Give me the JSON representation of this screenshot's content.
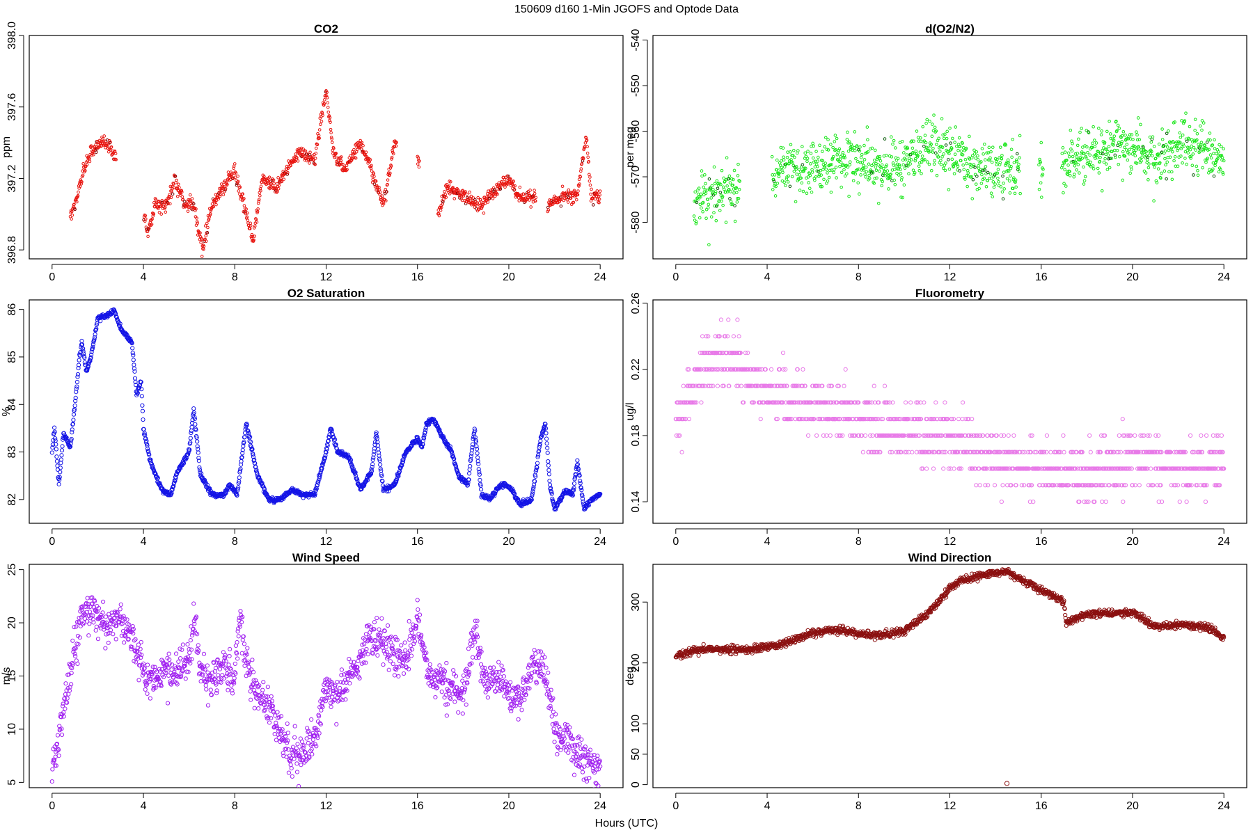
{
  "figure": {
    "title": "150609   d160   1-Min  JGOFS and Optode Data",
    "xlabel": "Hours (UTC)"
  },
  "chart_data": [
    {
      "type": "scatter",
      "title": "CO2",
      "ylabel": "ppm",
      "color": "#e8140f",
      "secondary_color": "#7a0000",
      "xlim": [
        -1,
        25
      ],
      "ylim": [
        396.75,
        398.0
      ],
      "xticks": [
        0,
        4,
        8,
        12,
        16,
        20,
        24
      ],
      "xtick_labels": [
        "0",
        "4",
        "8",
        "12",
        "16",
        "20",
        "24"
      ],
      "yticks": [
        396.8,
        397.2,
        397.6,
        398.0
      ],
      "ytick_labels": [
        "396.8",
        "397.2",
        "397.6",
        "398.0"
      ],
      "marker_size": 1.8,
      "noise": 0.04,
      "gaps": [
        [
          2.8,
          4.0
        ],
        [
          15.1,
          16.0
        ],
        [
          16.1,
          16.9
        ],
        [
          21.2,
          21.7
        ]
      ],
      "anchors": [
        [
          0.8,
          397.0
        ],
        [
          1.0,
          397.05
        ],
        [
          1.5,
          397.3
        ],
        [
          2.0,
          397.4
        ],
        [
          2.5,
          397.4
        ],
        [
          2.8,
          397.3
        ],
        [
          4.0,
          397.0
        ],
        [
          4.2,
          396.9
        ],
        [
          4.5,
          397.05
        ],
        [
          5.0,
          397.05
        ],
        [
          5.4,
          397.2
        ],
        [
          5.8,
          397.05
        ],
        [
          6.2,
          397.05
        ],
        [
          6.6,
          396.8
        ],
        [
          7.0,
          397.05
        ],
        [
          7.5,
          397.15
        ],
        [
          8.0,
          397.25
        ],
        [
          8.8,
          396.85
        ],
        [
          9.2,
          397.2
        ],
        [
          9.8,
          397.15
        ],
        [
          10.8,
          397.35
        ],
        [
          11.5,
          397.3
        ],
        [
          12.0,
          397.7
        ],
        [
          12.3,
          397.35
        ],
        [
          12.8,
          397.25
        ],
        [
          13.5,
          397.4
        ],
        [
          14.0,
          397.25
        ],
        [
          14.5,
          397.05
        ],
        [
          15.0,
          397.4
        ],
        [
          16.0,
          397.3
        ],
        [
          16.9,
          397.0
        ],
        [
          17.3,
          397.15
        ],
        [
          18.0,
          397.1
        ],
        [
          18.8,
          397.05
        ],
        [
          19.5,
          397.15
        ],
        [
          20.0,
          397.2
        ],
        [
          20.5,
          397.1
        ],
        [
          21.2,
          397.1
        ],
        [
          21.7,
          397.05
        ],
        [
          22.5,
          397.1
        ],
        [
          23.0,
          397.1
        ],
        [
          23.4,
          397.45
        ],
        [
          23.6,
          397.1
        ],
        [
          24.0,
          397.1
        ]
      ]
    },
    {
      "type": "scatter",
      "title": "d(O2/N2)",
      "ylabel": "per meg",
      "color": "#19e619",
      "secondary_color": "#0a5a0a",
      "xlim": [
        -1,
        25
      ],
      "ylim": [
        -588,
        -539
      ],
      "xticks": [
        0,
        4,
        8,
        12,
        16,
        20,
        24
      ],
      "xtick_labels": [
        "0",
        "4",
        "8",
        "12",
        "16",
        "20",
        "24"
      ],
      "yticks": [
        -580,
        -570,
        -560,
        -550,
        -540
      ],
      "ytick_labels": [
        "-580",
        "-570",
        "-560",
        "-550",
        "-540"
      ],
      "marker_size": 1.8,
      "noise": 5.5,
      "gaps": [
        [
          2.8,
          4.2
        ],
        [
          15.1,
          15.9
        ],
        [
          16.1,
          16.9
        ]
      ],
      "anchors": [
        [
          0.8,
          -576
        ],
        [
          1.5,
          -574
        ],
        [
          2.2,
          -572
        ],
        [
          2.8,
          -574
        ],
        [
          4.2,
          -570
        ],
        [
          5.0,
          -568
        ],
        [
          6.0,
          -568
        ],
        [
          7.0,
          -566
        ],
        [
          8.0,
          -567
        ],
        [
          9.0,
          -568
        ],
        [
          10.0,
          -567
        ],
        [
          11.0,
          -563
        ],
        [
          12.0,
          -565
        ],
        [
          13.0,
          -567
        ],
        [
          14.0,
          -569
        ],
        [
          15.0,
          -568
        ],
        [
          16.0,
          -570
        ],
        [
          17.0,
          -568
        ],
        [
          17.5,
          -566
        ],
        [
          18.5,
          -564
        ],
        [
          19.5,
          -563
        ],
        [
          20.0,
          -563
        ],
        [
          21.0,
          -566
        ],
        [
          22.0,
          -563
        ],
        [
          23.0,
          -564
        ],
        [
          24.0,
          -566
        ]
      ]
    },
    {
      "type": "scatter",
      "title": "O2 Saturation",
      "ylabel": "%",
      "color": "#1414e6",
      "xlim": [
        -1,
        25
      ],
      "ylim": [
        81.5,
        86.2
      ],
      "xticks": [
        0,
        4,
        8,
        12,
        16,
        20,
        24
      ],
      "xtick_labels": [
        "0",
        "4",
        "8",
        "12",
        "16",
        "20",
        "24"
      ],
      "yticks": [
        82,
        83,
        84,
        85,
        86
      ],
      "ytick_labels": [
        "82",
        "83",
        "84",
        "85",
        "86"
      ],
      "marker_size": 2.6,
      "noise": 0.05,
      "gaps": [],
      "anchors": [
        [
          0.0,
          83.0
        ],
        [
          0.1,
          83.5
        ],
        [
          0.3,
          82.3
        ],
        [
          0.5,
          83.4
        ],
        [
          0.8,
          83.1
        ],
        [
          1.0,
          84.0
        ],
        [
          1.2,
          85.0
        ],
        [
          1.3,
          85.3
        ],
        [
          1.5,
          84.7
        ],
        [
          1.7,
          85.0
        ],
        [
          2.0,
          85.8
        ],
        [
          2.5,
          85.9
        ],
        [
          2.7,
          86.0
        ],
        [
          3.0,
          85.6
        ],
        [
          3.5,
          85.3
        ],
        [
          3.7,
          84.2
        ],
        [
          3.9,
          84.5
        ],
        [
          4.0,
          83.5
        ],
        [
          4.3,
          82.8
        ],
        [
          4.8,
          82.2
        ],
        [
          5.2,
          82.1
        ],
        [
          5.5,
          82.6
        ],
        [
          6.0,
          83.0
        ],
        [
          6.2,
          83.9
        ],
        [
          6.5,
          82.5
        ],
        [
          7.0,
          82.1
        ],
        [
          7.5,
          82.1
        ],
        [
          7.8,
          82.3
        ],
        [
          8.1,
          82.1
        ],
        [
          8.5,
          83.6
        ],
        [
          9.0,
          82.5
        ],
        [
          9.5,
          82.0
        ],
        [
          10.0,
          82.0
        ],
        [
          10.5,
          82.2
        ],
        [
          11.0,
          82.1
        ],
        [
          11.5,
          82.1
        ],
        [
          12.0,
          83.0
        ],
        [
          12.2,
          83.5
        ],
        [
          12.5,
          83.0
        ],
        [
          13.0,
          82.9
        ],
        [
          13.5,
          82.2
        ],
        [
          14.0,
          82.6
        ],
        [
          14.2,
          83.4
        ],
        [
          14.5,
          82.2
        ],
        [
          15.0,
          82.3
        ],
        [
          15.5,
          83.0
        ],
        [
          16.0,
          83.3
        ],
        [
          16.2,
          83.1
        ],
        [
          16.4,
          83.6
        ],
        [
          16.7,
          83.7
        ],
        [
          17.0,
          83.4
        ],
        [
          17.5,
          83.0
        ],
        [
          17.8,
          82.5
        ],
        [
          18.2,
          82.3
        ],
        [
          18.5,
          83.5
        ],
        [
          18.8,
          82.1
        ],
        [
          19.2,
          82.0
        ],
        [
          19.6,
          82.3
        ],
        [
          20.0,
          82.3
        ],
        [
          20.5,
          81.9
        ],
        [
          21.0,
          82.0
        ],
        [
          21.4,
          83.3
        ],
        [
          21.6,
          83.6
        ],
        [
          21.8,
          82.3
        ],
        [
          22.0,
          81.8
        ],
        [
          22.5,
          82.2
        ],
        [
          22.8,
          82.1
        ],
        [
          23.0,
          82.8
        ],
        [
          23.3,
          81.8
        ],
        [
          23.6,
          82.0
        ],
        [
          24.0,
          82.1
        ]
      ]
    },
    {
      "type": "scatter",
      "title": "Fluorometry",
      "ylabel": "ug/l",
      "color": "#e87ae8",
      "xlim": [
        -1,
        25
      ],
      "ylim": [
        0.127,
        0.262
      ],
      "xticks": [
        0,
        4,
        8,
        12,
        16,
        20,
        24
      ],
      "xtick_labels": [
        "0",
        "4",
        "8",
        "12",
        "16",
        "20",
        "24"
      ],
      "yticks": [
        0.14,
        0.18,
        0.22,
        0.26
      ],
      "ytick_labels": [
        "0.14",
        "0.18",
        "0.22",
        "0.26"
      ],
      "marker_size": 2.6,
      "noise": 0.017,
      "quantize": 0.01,
      "gaps": [],
      "anchors": [
        [
          0.0,
          0.19
        ],
        [
          1.0,
          0.215
        ],
        [
          2.0,
          0.23
        ],
        [
          3.0,
          0.22
        ],
        [
          4.0,
          0.205
        ],
        [
          5.0,
          0.2
        ],
        [
          6.0,
          0.2
        ],
        [
          7.0,
          0.195
        ],
        [
          8.0,
          0.19
        ],
        [
          9.0,
          0.185
        ],
        [
          10.0,
          0.18
        ],
        [
          11.0,
          0.18
        ],
        [
          12.0,
          0.18
        ],
        [
          13.0,
          0.172
        ],
        [
          14.0,
          0.165
        ],
        [
          15.0,
          0.162
        ],
        [
          16.0,
          0.16
        ],
        [
          17.0,
          0.16
        ],
        [
          18.0,
          0.155
        ],
        [
          19.0,
          0.16
        ],
        [
          20.0,
          0.168
        ],
        [
          21.0,
          0.163
        ],
        [
          22.0,
          0.16
        ],
        [
          23.0,
          0.163
        ],
        [
          24.0,
          0.163
        ]
      ]
    },
    {
      "type": "scatter",
      "title": "Wind Speed",
      "ylabel": "m/s",
      "color": "#a020f0",
      "xlim": [
        -1,
        25
      ],
      "ylim": [
        4.5,
        25.5
      ],
      "xticks": [
        0,
        4,
        8,
        12,
        16,
        20,
        24
      ],
      "xtick_labels": [
        "0",
        "4",
        "8",
        "12",
        "16",
        "20",
        "24"
      ],
      "yticks": [
        5,
        10,
        15,
        20,
        25
      ],
      "ytick_labels": [
        "5",
        "10",
        "15",
        "20",
        "25"
      ],
      "marker_size": 2.6,
      "noise": 1.8,
      "gaps": [],
      "anchors": [
        [
          0.0,
          6.5
        ],
        [
          0.3,
          9.0
        ],
        [
          0.6,
          13.0
        ],
        [
          1.0,
          18.0
        ],
        [
          1.3,
          21.0
        ],
        [
          2.0,
          20.5
        ],
        [
          2.5,
          19.5
        ],
        [
          3.0,
          20.5
        ],
        [
          3.5,
          19.0
        ],
        [
          4.0,
          15.0
        ],
        [
          4.5,
          15.0
        ],
        [
          5.0,
          15.5
        ],
        [
          5.5,
          15.5
        ],
        [
          6.0,
          16.0
        ],
        [
          6.2,
          21.0
        ],
        [
          6.5,
          15.5
        ],
        [
          7.0,
          14.5
        ],
        [
          7.5,
          15.5
        ],
        [
          8.0,
          14.5
        ],
        [
          8.2,
          20.5
        ],
        [
          8.5,
          16.0
        ],
        [
          9.0,
          13.5
        ],
        [
          9.5,
          12.5
        ],
        [
          10.0,
          9.5
        ],
        [
          10.5,
          7.5
        ],
        [
          11.0,
          8.0
        ],
        [
          11.5,
          9.0
        ],
        [
          12.0,
          14.0
        ],
        [
          12.5,
          13.0
        ],
        [
          13.0,
          15.0
        ],
        [
          13.5,
          16.5
        ],
        [
          14.0,
          19.0
        ],
        [
          14.5,
          18.5
        ],
        [
          15.0,
          17.0
        ],
        [
          15.5,
          16.5
        ],
        [
          16.0,
          20.5
        ],
        [
          16.5,
          15.0
        ],
        [
          17.0,
          14.5
        ],
        [
          17.5,
          13.5
        ],
        [
          18.0,
          13.5
        ],
        [
          18.5,
          19.0
        ],
        [
          19.0,
          14.5
        ],
        [
          19.5,
          15.0
        ],
        [
          20.0,
          13.5
        ],
        [
          20.5,
          12.5
        ],
        [
          21.0,
          16.5
        ],
        [
          21.5,
          16.0
        ],
        [
          22.0,
          10.0
        ],
        [
          22.5,
          9.0
        ],
        [
          23.0,
          7.5
        ],
        [
          23.5,
          6.5
        ],
        [
          24.0,
          6.5
        ]
      ]
    },
    {
      "type": "scatter",
      "title": "Wind Direction",
      "ylabel": "deg",
      "color": "#8b1010",
      "xlim": [
        -1,
        25
      ],
      "ylim": [
        -5,
        362
      ],
      "xticks": [
        0,
        4,
        8,
        12,
        16,
        20,
        24
      ],
      "xtick_labels": [
        "0",
        "4",
        "8",
        "12",
        "16",
        "20",
        "24"
      ],
      "yticks": [
        0,
        50,
        100,
        200,
        300
      ],
      "ytick_labels": [
        "0",
        "50",
        "100",
        "200",
        "300"
      ],
      "marker_size": 2.6,
      "noise": 6,
      "gaps": [],
      "outliers": [
        [
          14.5,
          2
        ]
      ],
      "anchors": [
        [
          0.0,
          212
        ],
        [
          1.0,
          222
        ],
        [
          2.0,
          222
        ],
        [
          3.0,
          222
        ],
        [
          4.0,
          226
        ],
        [
          5.0,
          235
        ],
        [
          6.0,
          250
        ],
        [
          7.0,
          255
        ],
        [
          8.0,
          248
        ],
        [
          9.0,
          245
        ],
        [
          10.0,
          253
        ],
        [
          11.0,
          280
        ],
        [
          11.5,
          300
        ],
        [
          12.0,
          325
        ],
        [
          12.5,
          335
        ],
        [
          13.5,
          345
        ],
        [
          14.5,
          350
        ],
        [
          15.0,
          340
        ],
        [
          15.5,
          330
        ],
        [
          16.0,
          320
        ],
        [
          17.0,
          300
        ],
        [
          17.1,
          262
        ],
        [
          17.3,
          270
        ],
        [
          18.0,
          280
        ],
        [
          19.0,
          282
        ],
        [
          20.0,
          282
        ],
        [
          20.5,
          270
        ],
        [
          21.0,
          260
        ],
        [
          22.0,
          262
        ],
        [
          23.0,
          260
        ],
        [
          23.5,
          255
        ],
        [
          24.0,
          240
        ]
      ]
    }
  ]
}
